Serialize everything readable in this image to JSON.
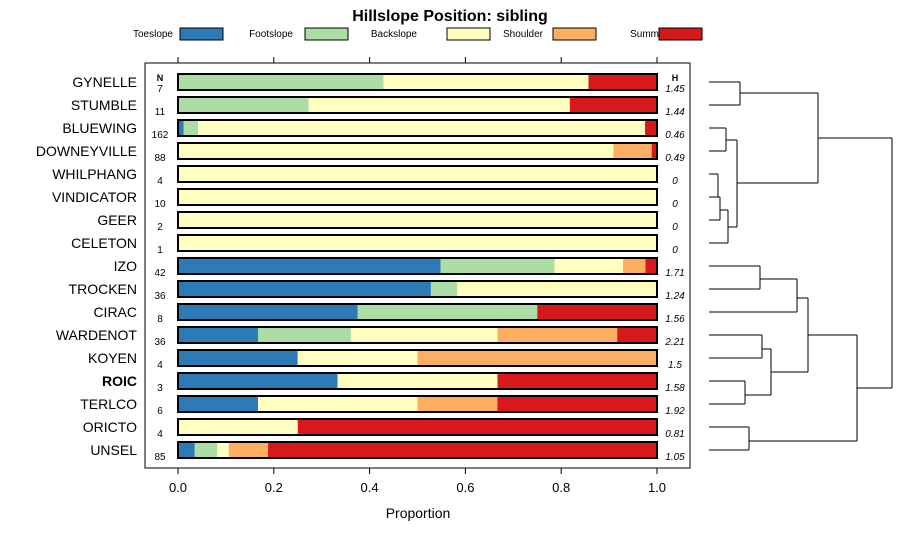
{
  "chart_data": {
    "type": "bar",
    "orientation": "horizontal-stacked",
    "title": "Hillslope Position: sibling",
    "xlabel": "Proportion",
    "ylabel": "",
    "xlim": [
      0,
      1
    ],
    "x_ticks": [
      "0.0",
      "0.2",
      "0.4",
      "0.6",
      "0.8",
      "1.0"
    ],
    "x_tick_values": [
      0,
      0.2,
      0.4,
      0.6,
      0.8,
      1.0
    ],
    "legend_position": "top",
    "n_header": "N",
    "h_header": "H",
    "highlighted_category": "ROIC",
    "series": [
      {
        "name": "Toeslope",
        "color": "#2c7bb6"
      },
      {
        "name": "Footslope",
        "color": "#abdda4"
      },
      {
        "name": "Backslope",
        "color": "#ffffbf"
      },
      {
        "name": "Shoulder",
        "color": "#fdae61"
      },
      {
        "name": "Summit",
        "color": "#d7191c"
      }
    ],
    "categories": [
      {
        "name": "GYNELLE",
        "n": "7",
        "h": "1.45",
        "values": [
          0,
          0.429,
          0.428,
          0,
          0.143
        ]
      },
      {
        "name": "STUMBLE",
        "n": "11",
        "h": "1.44",
        "values": [
          0,
          0.273,
          0.545,
          0,
          0.182
        ]
      },
      {
        "name": "BLUEWING",
        "n": "162",
        "h": "0.46",
        "values": [
          0.012,
          0.03,
          0.933,
          0,
          0.025
        ]
      },
      {
        "name": "DOWNEYVILLE",
        "n": "88",
        "h": "0.49",
        "values": [
          0,
          0,
          0.909,
          0.08,
          0.011
        ]
      },
      {
        "name": "WHILPHANG",
        "n": "4",
        "h": "0",
        "values": [
          0,
          0,
          1,
          0,
          0
        ]
      },
      {
        "name": "VINDICATOR",
        "n": "10",
        "h": "0",
        "values": [
          0,
          0,
          1,
          0,
          0
        ]
      },
      {
        "name": "GEER",
        "n": "2",
        "h": "0",
        "values": [
          0,
          0,
          1,
          0,
          0
        ]
      },
      {
        "name": "CELETON",
        "n": "1",
        "h": "0",
        "values": [
          0,
          0,
          1,
          0,
          0
        ]
      },
      {
        "name": "IZO",
        "n": "42",
        "h": "1.71",
        "values": [
          0.548,
          0.238,
          0.143,
          0.047,
          0.024
        ]
      },
      {
        "name": "TROCKEN",
        "n": "36",
        "h": "1.24",
        "values": [
          0.528,
          0.055,
          0.417,
          0,
          0
        ]
      },
      {
        "name": "CIRAC",
        "n": "8",
        "h": "1.56",
        "values": [
          0.375,
          0.375,
          0,
          0,
          0.25
        ]
      },
      {
        "name": "WARDENOT",
        "n": "36",
        "h": "2.21",
        "values": [
          0.167,
          0.194,
          0.306,
          0.25,
          0.083
        ]
      },
      {
        "name": "KOYEN",
        "n": "4",
        "h": "1.5",
        "values": [
          0.25,
          0,
          0.25,
          0.5,
          0
        ]
      },
      {
        "name": "ROIC",
        "n": "3",
        "h": "1.58",
        "values": [
          0.333,
          0,
          0.334,
          0,
          0.333
        ]
      },
      {
        "name": "TERLCO",
        "n": "6",
        "h": "1.92",
        "values": [
          0.167,
          0,
          0.333,
          0.167,
          0.333
        ]
      },
      {
        "name": "ORICTO",
        "n": "4",
        "h": "0.81",
        "values": [
          0,
          0,
          0.25,
          0,
          0.75
        ]
      },
      {
        "name": "UNSEL",
        "n": "85",
        "h": "1.05",
        "values": [
          0.035,
          0.047,
          0.024,
          0.082,
          0.812
        ]
      }
    ]
  }
}
